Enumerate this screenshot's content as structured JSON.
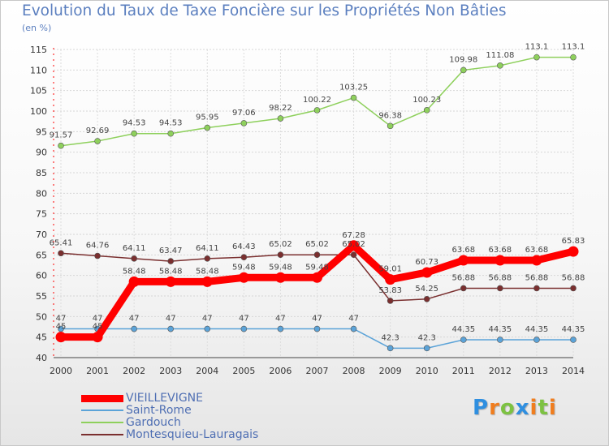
{
  "chart_data": {
    "type": "line",
    "title": "Evolution du Taux de Taxe Foncière sur les Propriétés Non Bâties",
    "ylabel": "(en %)",
    "xlabel": "",
    "ylim": [
      40,
      115
    ],
    "yticks": [
      40,
      45,
      50,
      55,
      60,
      65,
      70,
      75,
      80,
      85,
      90,
      95,
      100,
      105,
      110,
      115
    ],
    "categories": [
      "2000",
      "2001",
      "2002",
      "2003",
      "2004",
      "2005",
      "2006",
      "2007",
      "2008",
      "2009",
      "2010",
      "2011",
      "2012",
      "2013",
      "2014"
    ],
    "series": [
      {
        "name": "VIEILLEVIGNE",
        "color": "#ff0000",
        "values": [
          45,
          45,
          58.48,
          58.48,
          58.48,
          59.48,
          59.48,
          59.48,
          67.28,
          59.01,
          60.73,
          63.68,
          63.68,
          63.68,
          65.83
        ],
        "labels": [
          "45",
          "45",
          "58.48",
          "58.48",
          "58.48",
          "59.48",
          "59.48",
          "59.48",
          "67.28",
          "59.01",
          "60.73",
          "63.68",
          "63.68",
          "63.68",
          "65.83"
        ]
      },
      {
        "name": "Saint-Rome",
        "color": "#5ba3d8",
        "values": [
          47,
          47,
          47,
          47,
          47,
          47,
          47,
          47,
          47,
          42.3,
          42.3,
          44.35,
          44.35,
          44.35,
          44.35
        ],
        "labels": [
          "47",
          "47",
          "47",
          "47",
          "47",
          "47",
          "47",
          "47",
          "47",
          "42.3",
          "42.3",
          "44.35",
          "44.35",
          "44.35",
          "44.35"
        ]
      },
      {
        "name": "Gardouch",
        "color": "#8ed05c",
        "values": [
          91.57,
          92.69,
          94.53,
          94.53,
          95.95,
          97.06,
          98.22,
          100.22,
          103.25,
          96.38,
          100.23,
          109.98,
          111.08,
          113.1,
          113.1
        ],
        "labels": [
          "91.57",
          "92.69",
          "94.53",
          "94.53",
          "95.95",
          "97.06",
          "98.22",
          "100.22",
          "103.25",
          "96.38",
          "100.23",
          "109.98",
          "111.08",
          "113.1",
          "113.1"
        ]
      },
      {
        "name": "Montesquieu-Lauragais",
        "color": "#7a2f2f",
        "values": [
          65.41,
          64.76,
          64.11,
          63.47,
          64.11,
          64.43,
          65.02,
          65.02,
          65.02,
          53.83,
          54.25,
          56.88,
          56.88,
          56.88,
          56.88
        ],
        "labels": [
          "65.41",
          "64.76",
          "64.11",
          "63.47",
          "64.11",
          "64.43",
          "65.02",
          "65.02",
          "65.02",
          "53.83",
          "54.25",
          "56.88",
          "56.88",
          "56.88",
          "56.88"
        ]
      }
    ]
  },
  "logo": {
    "letters": [
      "P",
      "r",
      "o",
      "x",
      "i",
      "t",
      "i"
    ],
    "colors": [
      "#2f8fe0",
      "#f07d1e",
      "#7dc242",
      "#2f8fe0",
      "#f07d1e",
      "#7dc242",
      "#f07d1e"
    ]
  }
}
